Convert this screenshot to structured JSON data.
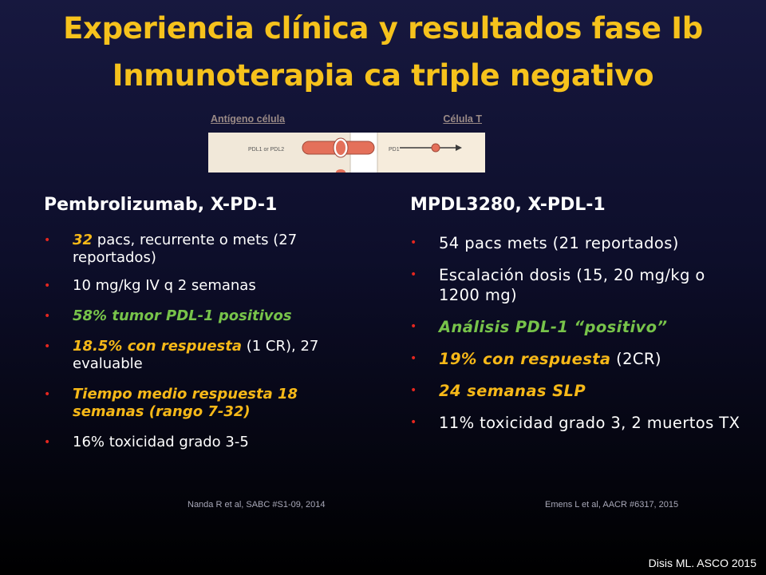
{
  "title": {
    "line1": "Experiencia clínica y resultados fase Ib",
    "line2": "Inmunoterapia ca triple negativo"
  },
  "figure": {
    "label_left": "Antígeno  célula",
    "label_right": "Célula T",
    "ligand_label": "PDL1 or PDL2",
    "receptor_label": "PD1"
  },
  "left": {
    "heading": "Pembrolizumab, X-PD-1",
    "items": [
      {
        "a": "32",
        "b": " pacs, recurrente o mets (27 reportados)"
      },
      {
        "a": "10 mg/kg IV q 2 semanas"
      },
      {
        "a": "58% tumor PDL-1 positivos"
      },
      {
        "a": "18.5%  con respuesta",
        "b": " (1 CR), 27 evaluable"
      },
      {
        "a": "Tiempo medio respuesta 18 semanas (rango 7-32)"
      },
      {
        "a": "16% toxicidad grado 3-5"
      }
    ],
    "citation": "Nanda R et al, SABC #S1-09, 2014"
  },
  "right": {
    "heading": "MPDL3280, X-PDL-1",
    "items": [
      {
        "a": "54 pacs mets (21 reportados)"
      },
      {
        "a": "Escalación dosis (15, 20 mg/kg o 1200 mg)"
      },
      {
        "a": "Análisis PDL-1 “positivo”"
      },
      {
        "a": "19% con respuesta",
        "b": " (2CR)"
      },
      {
        "a": "24 semanas  SLP"
      },
      {
        "a": "11%  toxicidad grado 3, 2 muertos TX"
      }
    ],
    "citation": "Emens L et al, AACR #6317, 2015"
  },
  "bullet_symbol": "•",
  "footer": "Disis ML. ASCO 2015",
  "colors": {
    "title": "#f6c21c",
    "highlight_orange": "#f6b818",
    "highlight_green": "#77c34a",
    "bullet": "#e5261f"
  }
}
